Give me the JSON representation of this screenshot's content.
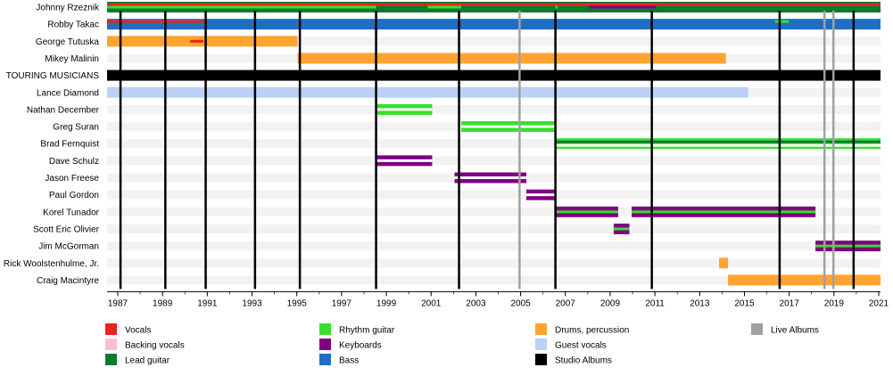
{
  "chart_data": {
    "type": "timeline",
    "title": "",
    "x_range": [
      1986.5,
      2021
    ],
    "tick_labels": [
      "1987",
      "1989",
      "1991",
      "1993",
      "1995",
      "1997",
      "1999",
      "2001",
      "2003",
      "2005",
      "2007",
      "2009",
      "2011",
      "2013",
      "2015",
      "2017",
      "2019",
      "2021"
    ],
    "colors": {
      "vocals": "#e8241f",
      "backing_vocals": "#ffc0cb",
      "lead_guitar": "#0a7b2e",
      "rhythm_guitar": "#35e02e",
      "keyboards": "#800080",
      "bass": "#1e6fc4",
      "drums": "#ffa431",
      "guest_vocals": "#bcd0f8",
      "studio_albums": "#000000",
      "live_albums": "#a0a0a0"
    },
    "members": [
      {
        "name": "Johnny Rzeznik",
        "bars": [
          {
            "from": 1986.5,
            "to": 2021,
            "role": "lead_guitar",
            "thick": true
          },
          {
            "from": 1986.5,
            "to": 2021,
            "role": "vocals",
            "thin": true,
            "offset": -3
          },
          {
            "from": 1986.5,
            "to": 1998.5,
            "role": "rhythm_guitar",
            "thin": true,
            "offset": 0
          },
          {
            "from": 2000.8,
            "to": 2002.3,
            "role": "rhythm_guitar",
            "thin": true,
            "offset": 0
          },
          {
            "from": 2006.5,
            "to": 2006.6,
            "role": "rhythm_guitar",
            "thin": true,
            "offset": 0
          },
          {
            "from": 2008.0,
            "to": 2011.0,
            "role": "keyboards",
            "thin": true,
            "offset": 0
          }
        ]
      },
      {
        "name": "Robby Takac",
        "bars": [
          {
            "from": 1986.5,
            "to": 2021,
            "role": "bass",
            "thick": true
          },
          {
            "from": 1986.5,
            "to": 1990.9,
            "role": "vocals",
            "thin": true,
            "offset": -3
          },
          {
            "from": 2016.3,
            "to": 2016.9,
            "role": "rhythm_guitar",
            "thin": true,
            "offset": -3
          }
        ]
      },
      {
        "name": "George Tutuska",
        "bars": [
          {
            "from": 1986.5,
            "to": 1995.0,
            "role": "drums",
            "thick": true
          },
          {
            "from": 1990.2,
            "to": 1990.8,
            "role": "vocals",
            "thin": true,
            "offset": 0
          }
        ]
      },
      {
        "name": "Mikey Malinin",
        "bars": [
          {
            "from": 1995.0,
            "to": 2014.1,
            "role": "drums",
            "thick": true
          }
        ]
      },
      {
        "name": "TOURING MUSICIANS",
        "bars": [
          {
            "from": 1986.5,
            "to": 2021,
            "role": "studio_albums",
            "thick": true
          }
        ]
      },
      {
        "name": "Lance Diamond",
        "bars": [
          {
            "from": 1986.5,
            "to": 2015.1,
            "role": "guest_vocals",
            "thick": true
          }
        ]
      },
      {
        "name": "Nathan December",
        "bars": [
          {
            "from": 1998.5,
            "to": 2001.0,
            "role": "rhythm_guitar",
            "thick": true
          },
          {
            "from": 1998.5,
            "to": 2001.0,
            "role": "white",
            "thin": true,
            "offset": 0
          }
        ]
      },
      {
        "name": "Greg Suran",
        "bars": [
          {
            "from": 2002.3,
            "to": 2006.5,
            "role": "rhythm_guitar",
            "thick": true
          },
          {
            "from": 2002.3,
            "to": 2006.5,
            "role": "white",
            "thin": true,
            "offset": 0
          }
        ]
      },
      {
        "name": "Brad Fernquist",
        "bars": [
          {
            "from": 2006.5,
            "to": 2021,
            "role": "rhythm_guitar",
            "thick": true
          },
          {
            "from": 2006.5,
            "to": 2021,
            "role": "lead_guitar",
            "thin": true,
            "offset": -2
          },
          {
            "from": 2006.5,
            "to": 2021,
            "role": "white",
            "thin": true,
            "offset": 2
          }
        ]
      },
      {
        "name": "Dave Schulz",
        "bars": [
          {
            "from": 1998.5,
            "to": 2001.0,
            "role": "keyboards",
            "thick": true
          },
          {
            "from": 1998.5,
            "to": 2001.0,
            "role": "white",
            "thin": true,
            "offset": 0
          }
        ]
      },
      {
        "name": "Jason Freese",
        "bars": [
          {
            "from": 2002.0,
            "to": 2005.2,
            "role": "keyboards",
            "thick": true
          },
          {
            "from": 2002.0,
            "to": 2005.2,
            "role": "white",
            "thin": true,
            "offset": 0
          }
        ]
      },
      {
        "name": "Paul Gordon",
        "bars": [
          {
            "from": 2005.2,
            "to": 2006.5,
            "role": "keyboards",
            "thick": true
          },
          {
            "from": 2005.2,
            "to": 2006.5,
            "role": "white",
            "thin": true,
            "offset": 0
          }
        ]
      },
      {
        "name": "Korel Tunador",
        "bars": [
          {
            "from": 2006.5,
            "to": 2009.3,
            "role": "keyboards",
            "thick": true
          },
          {
            "from": 2006.5,
            "to": 2009.3,
            "role": "rhythm_guitar",
            "thin": true,
            "offset": 0
          },
          {
            "from": 2009.9,
            "to": 2018.1,
            "role": "keyboards",
            "thick": true
          },
          {
            "from": 2009.9,
            "to": 2018.1,
            "role": "rhythm_guitar",
            "thin": true,
            "offset": 0
          }
        ]
      },
      {
        "name": "Scott Eric Olivier",
        "bars": [
          {
            "from": 2009.1,
            "to": 2009.8,
            "role": "keyboards",
            "thick": true
          },
          {
            "from": 2009.1,
            "to": 2009.8,
            "role": "rhythm_guitar",
            "thin": true,
            "offset": 0
          }
        ]
      },
      {
        "name": "Jim McGorman",
        "bars": [
          {
            "from": 2018.1,
            "to": 2021,
            "role": "keyboards",
            "thick": true
          },
          {
            "from": 2018.1,
            "to": 2021,
            "role": "rhythm_guitar",
            "thin": true,
            "offset": 0
          }
        ]
      },
      {
        "name": "Rick Woolstenhulme, Jr.",
        "bars": [
          {
            "from": 2013.8,
            "to": 2014.2,
            "role": "drums",
            "thick": true
          }
        ]
      },
      {
        "name": "Craig Macintyre",
        "bars": [
          {
            "from": 2014.2,
            "to": 2021,
            "role": "drums",
            "thick": true
          }
        ]
      }
    ],
    "studio_albums": [
      1987.1,
      1989.1,
      1990.9,
      1993.1,
      1995.1,
      1998.5,
      2002.2,
      2006.5,
      2010.8,
      2016.5,
      2019.8
    ],
    "live_albums": [
      2004.9,
      2018.5,
      2018.9
    ],
    "legend": [
      {
        "key": "vocals",
        "label": "Vocals"
      },
      {
        "key": "backing_vocals",
        "label": "Backing vocals"
      },
      {
        "key": "lead_guitar",
        "label": "Lead guitar"
      },
      {
        "key": "rhythm_guitar",
        "label": "Rhythm guitar"
      },
      {
        "key": "keyboards",
        "label": "Keyboards"
      },
      {
        "key": "bass",
        "label": "Bass"
      },
      {
        "key": "drums",
        "label": "Drums, percussion"
      },
      {
        "key": "guest_vocals",
        "label": "Guest vocals"
      },
      {
        "key": "studio_albums",
        "label": "Studio Albums"
      },
      {
        "key": "live_albums",
        "label": "Live Albums"
      }
    ]
  }
}
